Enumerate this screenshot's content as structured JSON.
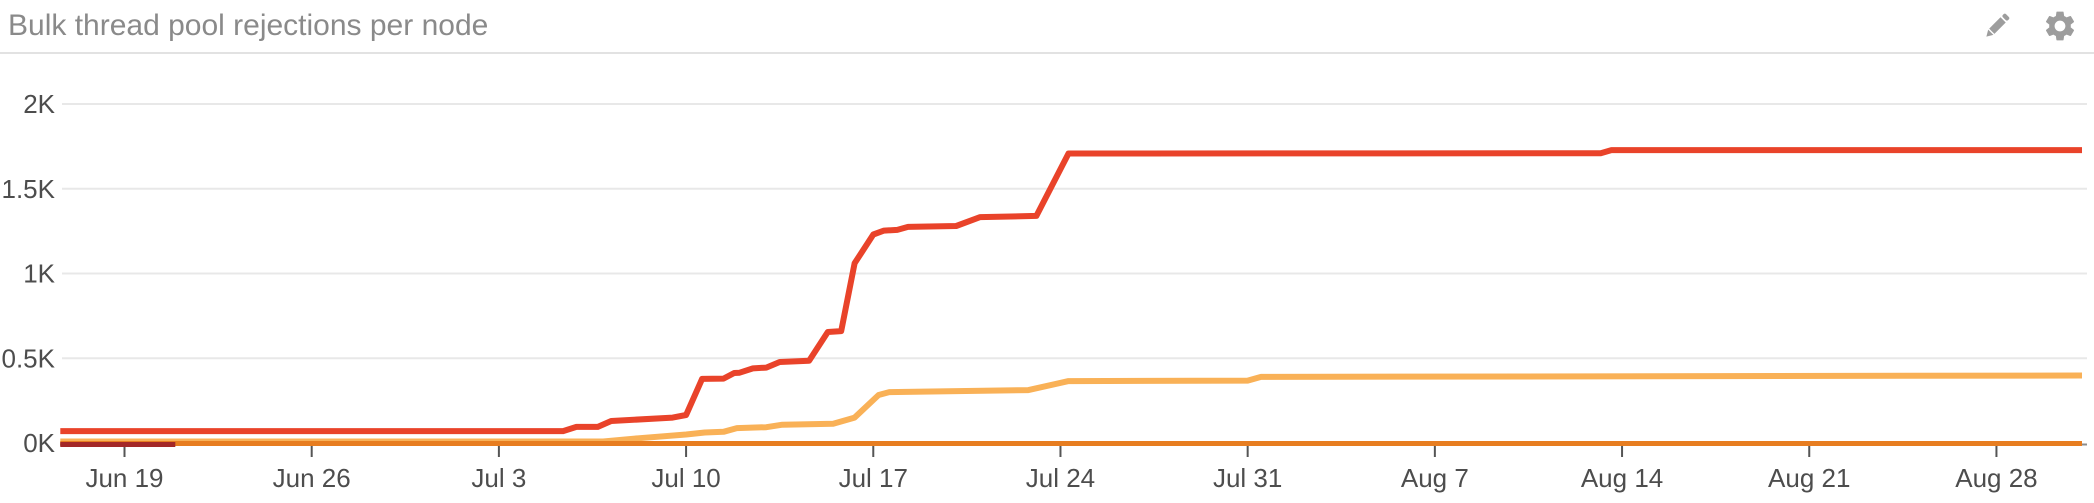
{
  "panel": {
    "title": "Bulk thread pool rejections per node",
    "edit_label": "edit",
    "settings_label": "settings"
  },
  "colors": {
    "background": "#ffffff",
    "title_text": "#8a8a8a",
    "header_border": "#e2e2e2",
    "icon": "#9d9d9d",
    "axis_text": "#4d4d4d",
    "grid_line": "#e8e8e8",
    "axis_line": "#8c8c8c",
    "tick_mark": "#555555",
    "series_red": "#e9432a",
    "series_amber": "#f9b157",
    "series_orange": "#e77d20",
    "series_dark_red": "#a32727"
  },
  "chart_data": {
    "type": "line",
    "title": "Bulk thread pool rejections per node",
    "xlabel": "",
    "ylabel": "",
    "grid": true,
    "legend": "none",
    "x_unit": "days relative to Jun 19",
    "x_range": [
      -2.4,
      73.2
    ],
    "y_range": [
      0,
      2000
    ],
    "x_ticks": [
      {
        "pos": 0,
        "label": "Jun 19"
      },
      {
        "pos": 7,
        "label": "Jun 26"
      },
      {
        "pos": 14,
        "label": "Jul 3"
      },
      {
        "pos": 21,
        "label": "Jul 10"
      },
      {
        "pos": 28,
        "label": "Jul 17"
      },
      {
        "pos": 35,
        "label": "Jul 24"
      },
      {
        "pos": 42,
        "label": "Jul 31"
      },
      {
        "pos": 49,
        "label": "Aug 7"
      },
      {
        "pos": 56,
        "label": "Aug 14"
      },
      {
        "pos": 63,
        "label": "Aug 21"
      },
      {
        "pos": 70,
        "label": "Aug 28"
      }
    ],
    "y_ticks": [
      {
        "pos": 0,
        "label": "0K"
      },
      {
        "pos": 500,
        "label": "0.5K"
      },
      {
        "pos": 1000,
        "label": "1K"
      },
      {
        "pos": 1500,
        "label": "1.5K"
      },
      {
        "pos": 2000,
        "label": "2K"
      }
    ],
    "series": [
      {
        "name": "red",
        "color": "#e9432a",
        "points": [
          [
            -2.4,
            70
          ],
          [
            16.4,
            70
          ],
          [
            16.9,
            95
          ],
          [
            17.7,
            95
          ],
          [
            18.2,
            130
          ],
          [
            20.5,
            150
          ],
          [
            21.0,
            165
          ],
          [
            21.6,
            378
          ],
          [
            22.4,
            380
          ],
          [
            22.8,
            413
          ],
          [
            23.0,
            415
          ],
          [
            23.5,
            440
          ],
          [
            24.0,
            445
          ],
          [
            24.5,
            478
          ],
          [
            25.6,
            485
          ],
          [
            26.3,
            655
          ],
          [
            26.8,
            660
          ],
          [
            27.3,
            1060
          ],
          [
            28.0,
            1230
          ],
          [
            28.4,
            1253
          ],
          [
            28.9,
            1257
          ],
          [
            29.3,
            1275
          ],
          [
            31.1,
            1280
          ],
          [
            32.0,
            1333
          ],
          [
            34.1,
            1340
          ],
          [
            35.3,
            1708
          ],
          [
            55.2,
            1710
          ],
          [
            55.6,
            1728
          ],
          [
            73.2,
            1728
          ]
        ]
      },
      {
        "name": "amber",
        "color": "#f9b157",
        "points": [
          [
            -2.4,
            0
          ],
          [
            17.9,
            2
          ],
          [
            19.2,
            28
          ],
          [
            21.0,
            50
          ],
          [
            21.7,
            62
          ],
          [
            22.4,
            66
          ],
          [
            22.9,
            88
          ],
          [
            24.0,
            93
          ],
          [
            24.6,
            108
          ],
          [
            26.5,
            113
          ],
          [
            27.3,
            150
          ],
          [
            28.2,
            283
          ],
          [
            28.6,
            300
          ],
          [
            33.8,
            312
          ],
          [
            35.3,
            365
          ],
          [
            42.0,
            368
          ],
          [
            42.5,
            390
          ],
          [
            73.2,
            398
          ]
        ]
      },
      {
        "name": "orange-baseline",
        "color": "#e77d20",
        "points": [
          [
            -2.4,
            0
          ],
          [
            73.2,
            0
          ]
        ]
      },
      {
        "name": "dark-red",
        "color": "#a32727",
        "points": [
          [
            -2.4,
            0
          ],
          [
            1.9,
            0
          ]
        ]
      }
    ]
  }
}
